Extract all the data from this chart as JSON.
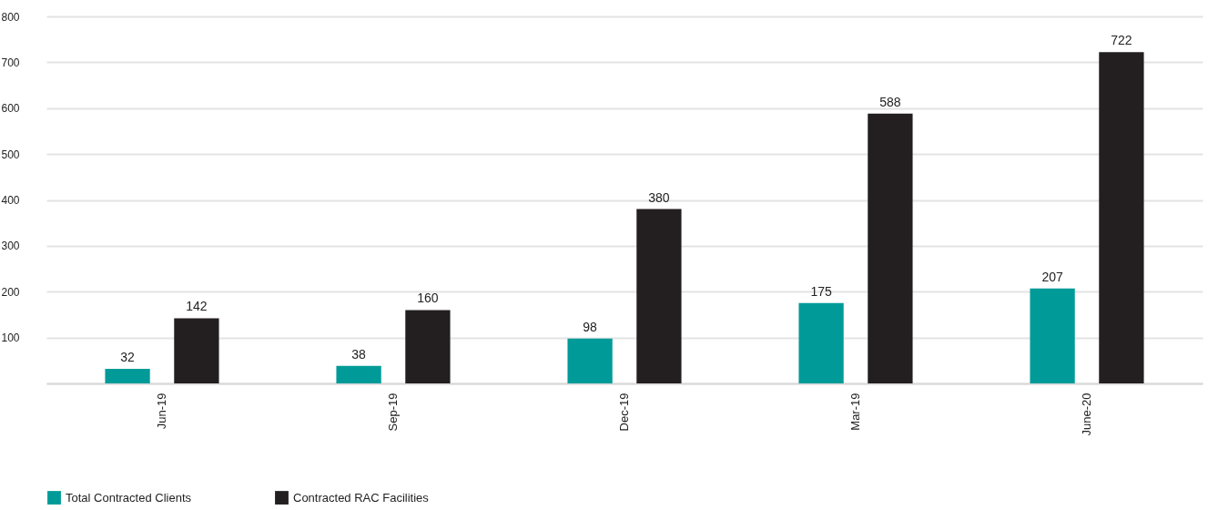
{
  "chart_data": {
    "type": "bar",
    "categories": [
      "Jun-19",
      "Sep-19",
      "Dec-19",
      "Mar-19",
      "June-20"
    ],
    "series": [
      {
        "name": "Total Contracted Clients",
        "color": "#009b98",
        "values": [
          32,
          38,
          98,
          175,
          207
        ]
      },
      {
        "name": "Contracted RAC Facilities",
        "color": "#231f20",
        "values": [
          142,
          160,
          380,
          588,
          722
        ]
      }
    ],
    "ylim": [
      0,
      800
    ],
    "yticks": [
      {
        "value": 0,
        "label": null
      },
      100,
      200,
      300,
      400,
      500,
      600,
      700,
      800
    ],
    "grid": "y",
    "legend": "bottom",
    "data_labels": true
  }
}
